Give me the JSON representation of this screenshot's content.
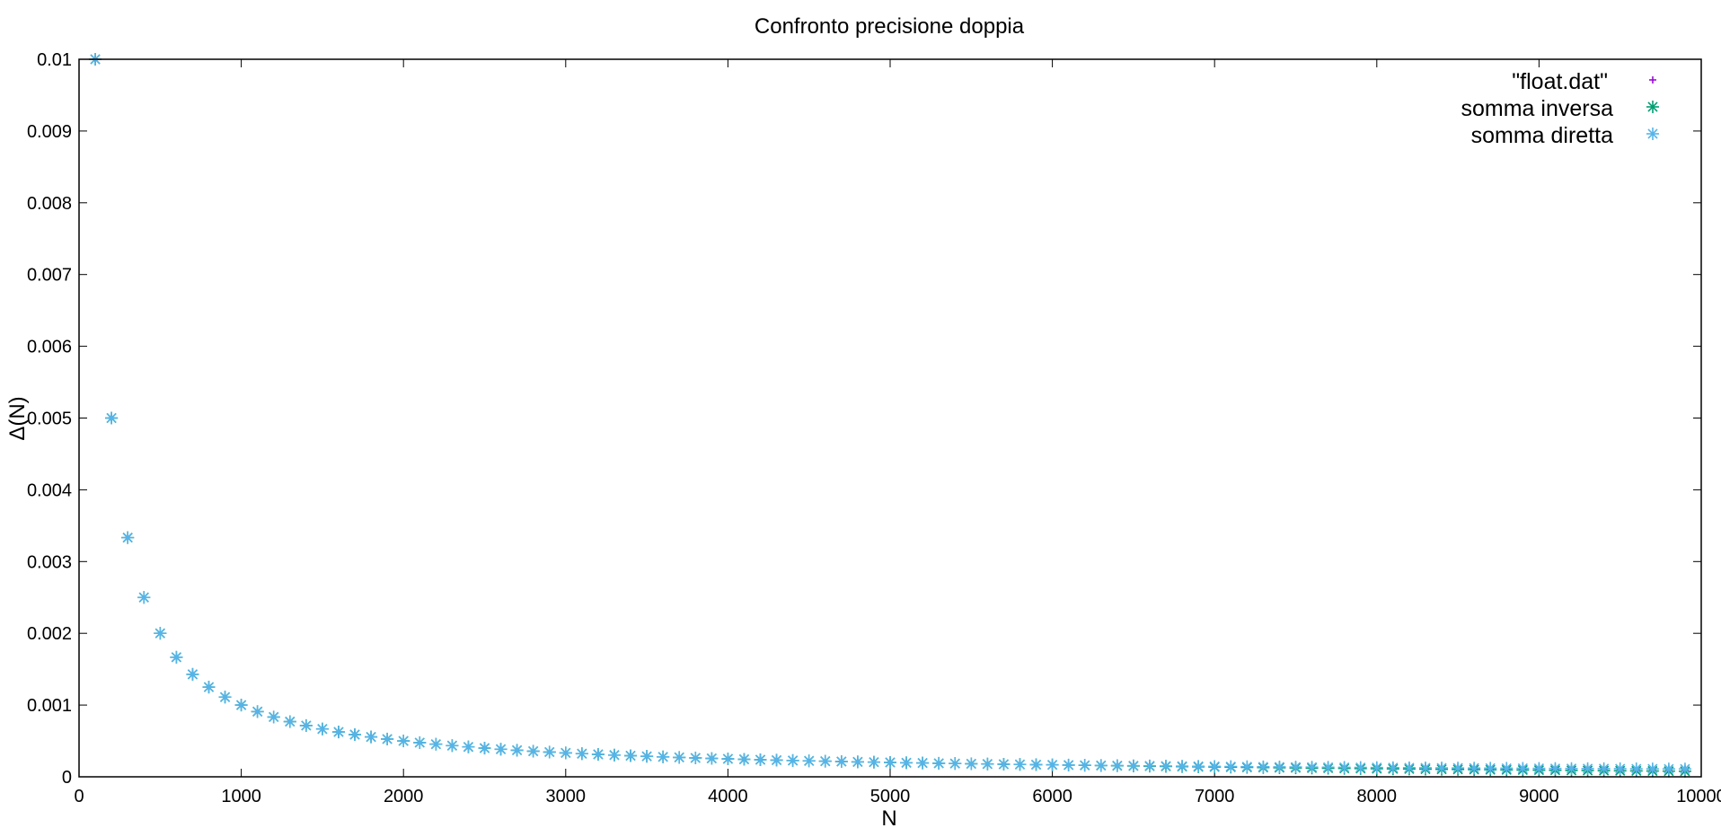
{
  "chart_data": {
    "type": "scatter",
    "title": "Confronto precisione doppia",
    "xlabel": "N",
    "ylabel": "Δ(N)",
    "xlim": [
      0,
      10000
    ],
    "ylim": [
      0,
      0.01
    ],
    "x_ticks": [
      "0",
      "1000",
      "2000",
      "3000",
      "4000",
      "5000",
      "6000",
      "7000",
      "8000",
      "9000",
      "10000"
    ],
    "y_ticks": [
      "0",
      "0.001",
      "0.002",
      "0.003",
      "0.004",
      "0.005",
      "0.006",
      "0.007",
      "0.008",
      "0.009",
      "0.01"
    ],
    "grid": false,
    "legend_position": "top-right",
    "x_formula_note_free": true,
    "series": [
      {
        "name": "\"float.dat\"",
        "color": "#9400d3",
        "marker": "plus",
        "x_start": 100,
        "x_step": 100,
        "x_end": 9900,
        "values_rule": "1/N"
      },
      {
        "name": "somma inversa",
        "color": "#009e73",
        "marker": "star",
        "x_start": 100,
        "x_step": 100,
        "x_end": 9900,
        "values_rule": "1/N"
      },
      {
        "name": "somma diretta",
        "color": "#56b4e9",
        "marker": "star",
        "x_start": 100,
        "x_step": 100,
        "x_end": 9900,
        "values_rule": "1/N"
      }
    ]
  }
}
